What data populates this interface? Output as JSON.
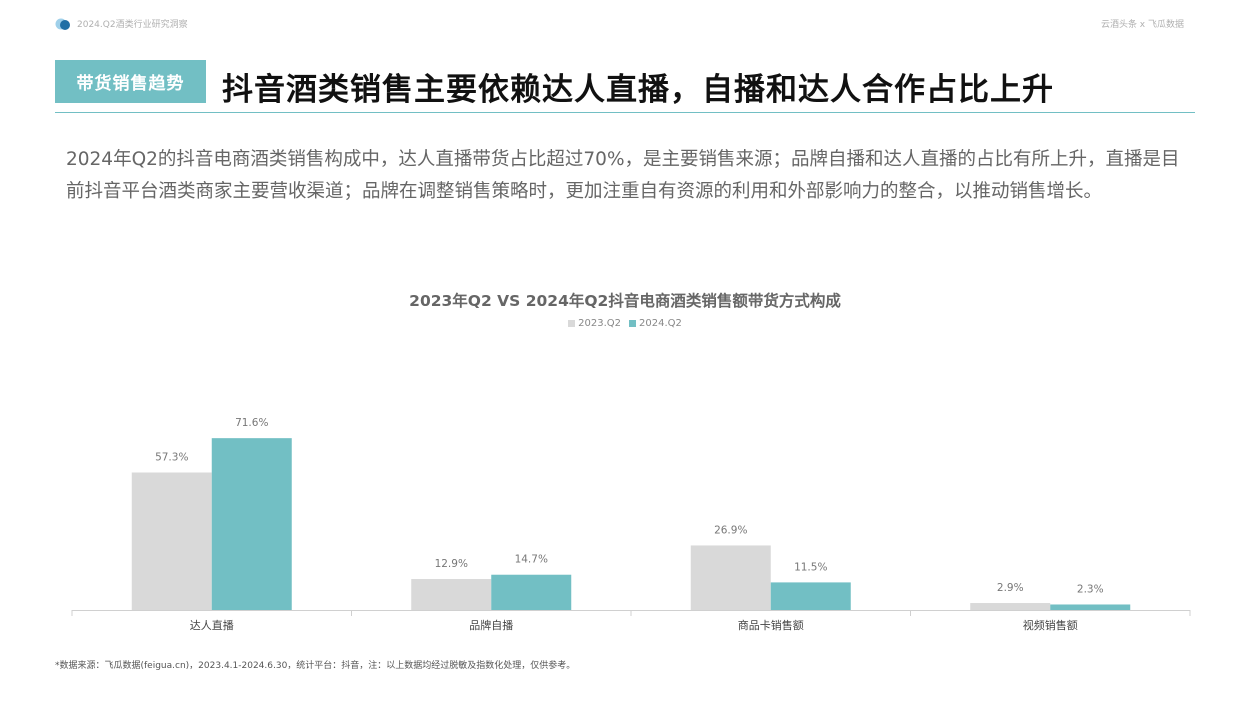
{
  "header": {
    "report_name": "2024.Q2酒类行业研究洞察",
    "brand_right": "云酒头条 x 飞瓜数据"
  },
  "section_tag": "带货销售趋势",
  "headline": "抖音酒类销售主要依赖达人直播，自播和达人合作占比上升",
  "summary": "2024年Q2的抖音电商酒类销售构成中，达人直播带货占比超过70%，是主要销售来源；品牌自播和达人直播的占比有所上升，直播是目前抖音平台酒类商家主要营收渠道；品牌在调整销售策略时，更加注重自有资源的利用和外部影响力的整合，以推动销售增长。",
  "footnote": "*数据来源：飞瓜数据(feigua.cn)，2023.4.1-2024.6.30，统计平台：抖音，注：以上数据均经过脱敏及指数化处理，仅供参考。",
  "colors": {
    "accent": "#72bfc4",
    "series_2023": "#d9d9d9",
    "series_2024": "#72bfc4",
    "logo_dark": "#1f6fa5",
    "logo_light": "#9fd0ea"
  },
  "chart_data": {
    "type": "bar",
    "title": "2023年Q2 VS 2024年Q2抖音电商酒类销售额带货方式构成",
    "categories": [
      "达人直播",
      "品牌自播",
      "商品卡销售额",
      "视频销售额"
    ],
    "series": [
      {
        "name": "2023.Q2",
        "values": [
          57.3,
          12.9,
          26.9,
          2.9
        ],
        "labels": [
          "57.3%",
          "12.9%",
          "26.9%",
          "2.9%"
        ],
        "color": "#d9d9d9"
      },
      {
        "name": "2024.Q2",
        "values": [
          71.6,
          14.7,
          11.5,
          2.3
        ],
        "labels": [
          "71.6%",
          "14.7%",
          "11.5%",
          "2.3%"
        ],
        "color": "#72bfc4"
      }
    ],
    "ylim": [
      0,
      80
    ],
    "legend": "top-center",
    "grid": false
  }
}
